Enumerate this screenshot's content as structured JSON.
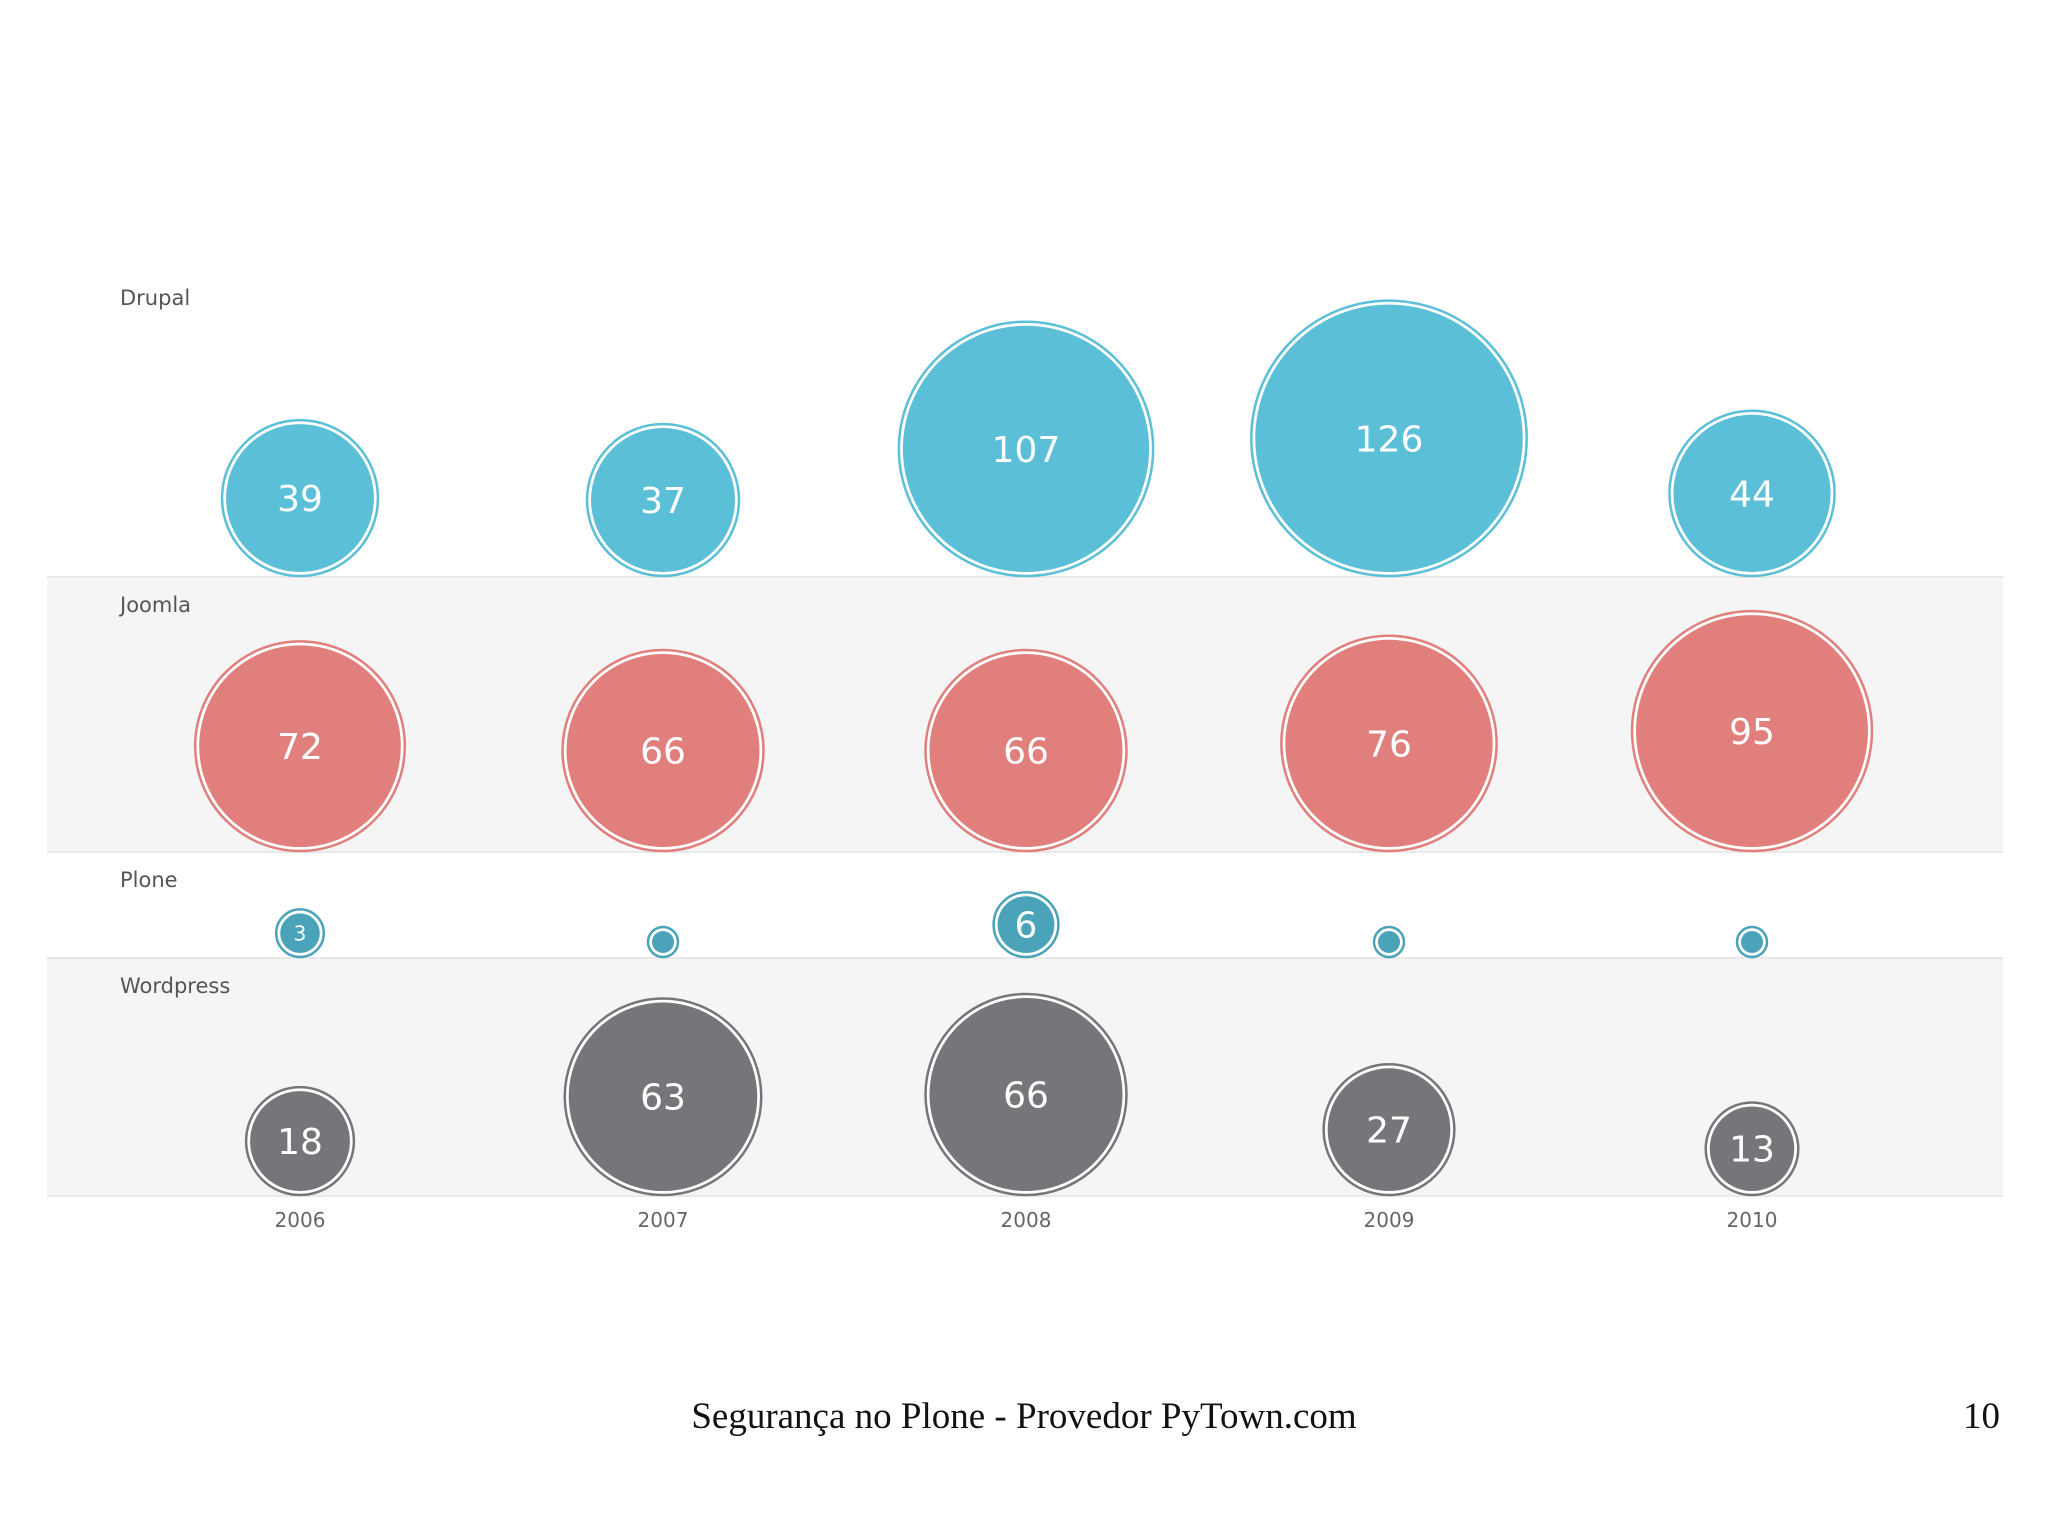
{
  "chart_data": {
    "type": "bubble",
    "categories": [
      "2006",
      "2007",
      "2008",
      "2009",
      "2010"
    ],
    "series": [
      {
        "name": "Drupal",
        "values": [
          39,
          37,
          107,
          126,
          44
        ],
        "labels": [
          "39",
          "37",
          "107",
          "126",
          "44"
        ],
        "color": "#5bbfd8"
      },
      {
        "name": "Joomla",
        "values": [
          72,
          66,
          66,
          76,
          95
        ],
        "labels": [
          "72",
          "66",
          "66",
          "76",
          "95"
        ],
        "color": "#e07f7b"
      },
      {
        "name": "Plone",
        "values": [
          3,
          1,
          6,
          1,
          1
        ],
        "labels": [
          "3",
          "",
          "6",
          "",
          ""
        ],
        "color": "#4aa3b8"
      },
      {
        "name": "Wordpress",
        "values": [
          18,
          63,
          66,
          27,
          13
        ],
        "labels": [
          "18",
          "63",
          "66",
          "27",
          "13"
        ],
        "color": "#777579"
      }
    ]
  },
  "footer": {
    "title": "Segurança no Plone - Provedor PyTown.com",
    "page_number": "10"
  }
}
